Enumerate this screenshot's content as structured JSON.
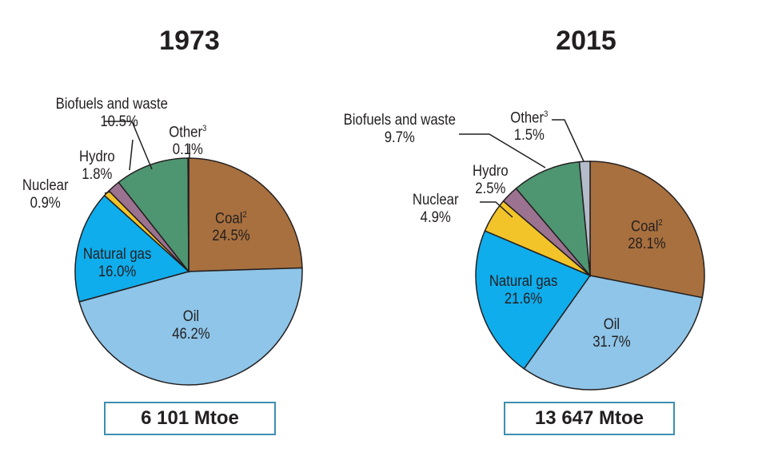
{
  "chart_data": [
    {
      "type": "pie",
      "title": "1973",
      "total_label": "6 101 Mtoe",
      "slices": [
        {
          "label": "Coal",
          "sup": "2",
          "value": 24.5,
          "display": "24.5%",
          "color": "#a8703e"
        },
        {
          "label": "Oil",
          "sup": "",
          "value": 46.2,
          "display": "46.2%",
          "color": "#8ec5e8"
        },
        {
          "label": "Natural gas",
          "sup": "",
          "value": 16.0,
          "display": "16.0%",
          "color": "#0fadec"
        },
        {
          "label": "Nuclear",
          "sup": "",
          "value": 0.9,
          "display": "0.9%",
          "color": "#f2c42a"
        },
        {
          "label": "Hydro",
          "sup": "",
          "value": 1.8,
          "display": "1.8%",
          "color": "#9b7290"
        },
        {
          "label": "Biofuels and waste",
          "sup": "",
          "value": 10.5,
          "display": "10.5%",
          "color": "#4e9672"
        },
        {
          "label": "Other",
          "sup": "3",
          "value": 0.1,
          "display": "0.1%",
          "color": "#b4bccb"
        }
      ]
    },
    {
      "type": "pie",
      "title": "2015",
      "total_label": "13 647 Mtoe",
      "slices": [
        {
          "label": "Coal",
          "sup": "2",
          "value": 28.1,
          "display": "28.1%",
          "color": "#a8703e"
        },
        {
          "label": "Oil",
          "sup": "",
          "value": 31.7,
          "display": "31.7%",
          "color": "#8ec5e8"
        },
        {
          "label": "Natural gas",
          "sup": "",
          "value": 21.6,
          "display": "21.6%",
          "color": "#0fadec"
        },
        {
          "label": "Nuclear",
          "sup": "",
          "value": 4.9,
          "display": "4.9%",
          "color": "#f2c42a"
        },
        {
          "label": "Hydro",
          "sup": "",
          "value": 2.5,
          "display": "2.5%",
          "color": "#9b7290"
        },
        {
          "label": "Biofuels and waste",
          "sup": "",
          "value": 9.7,
          "display": "9.7%",
          "color": "#4e9672"
        },
        {
          "label": "Other",
          "sup": "3",
          "value": 1.5,
          "display": "1.5%",
          "color": "#b4bccb"
        }
      ]
    }
  ]
}
